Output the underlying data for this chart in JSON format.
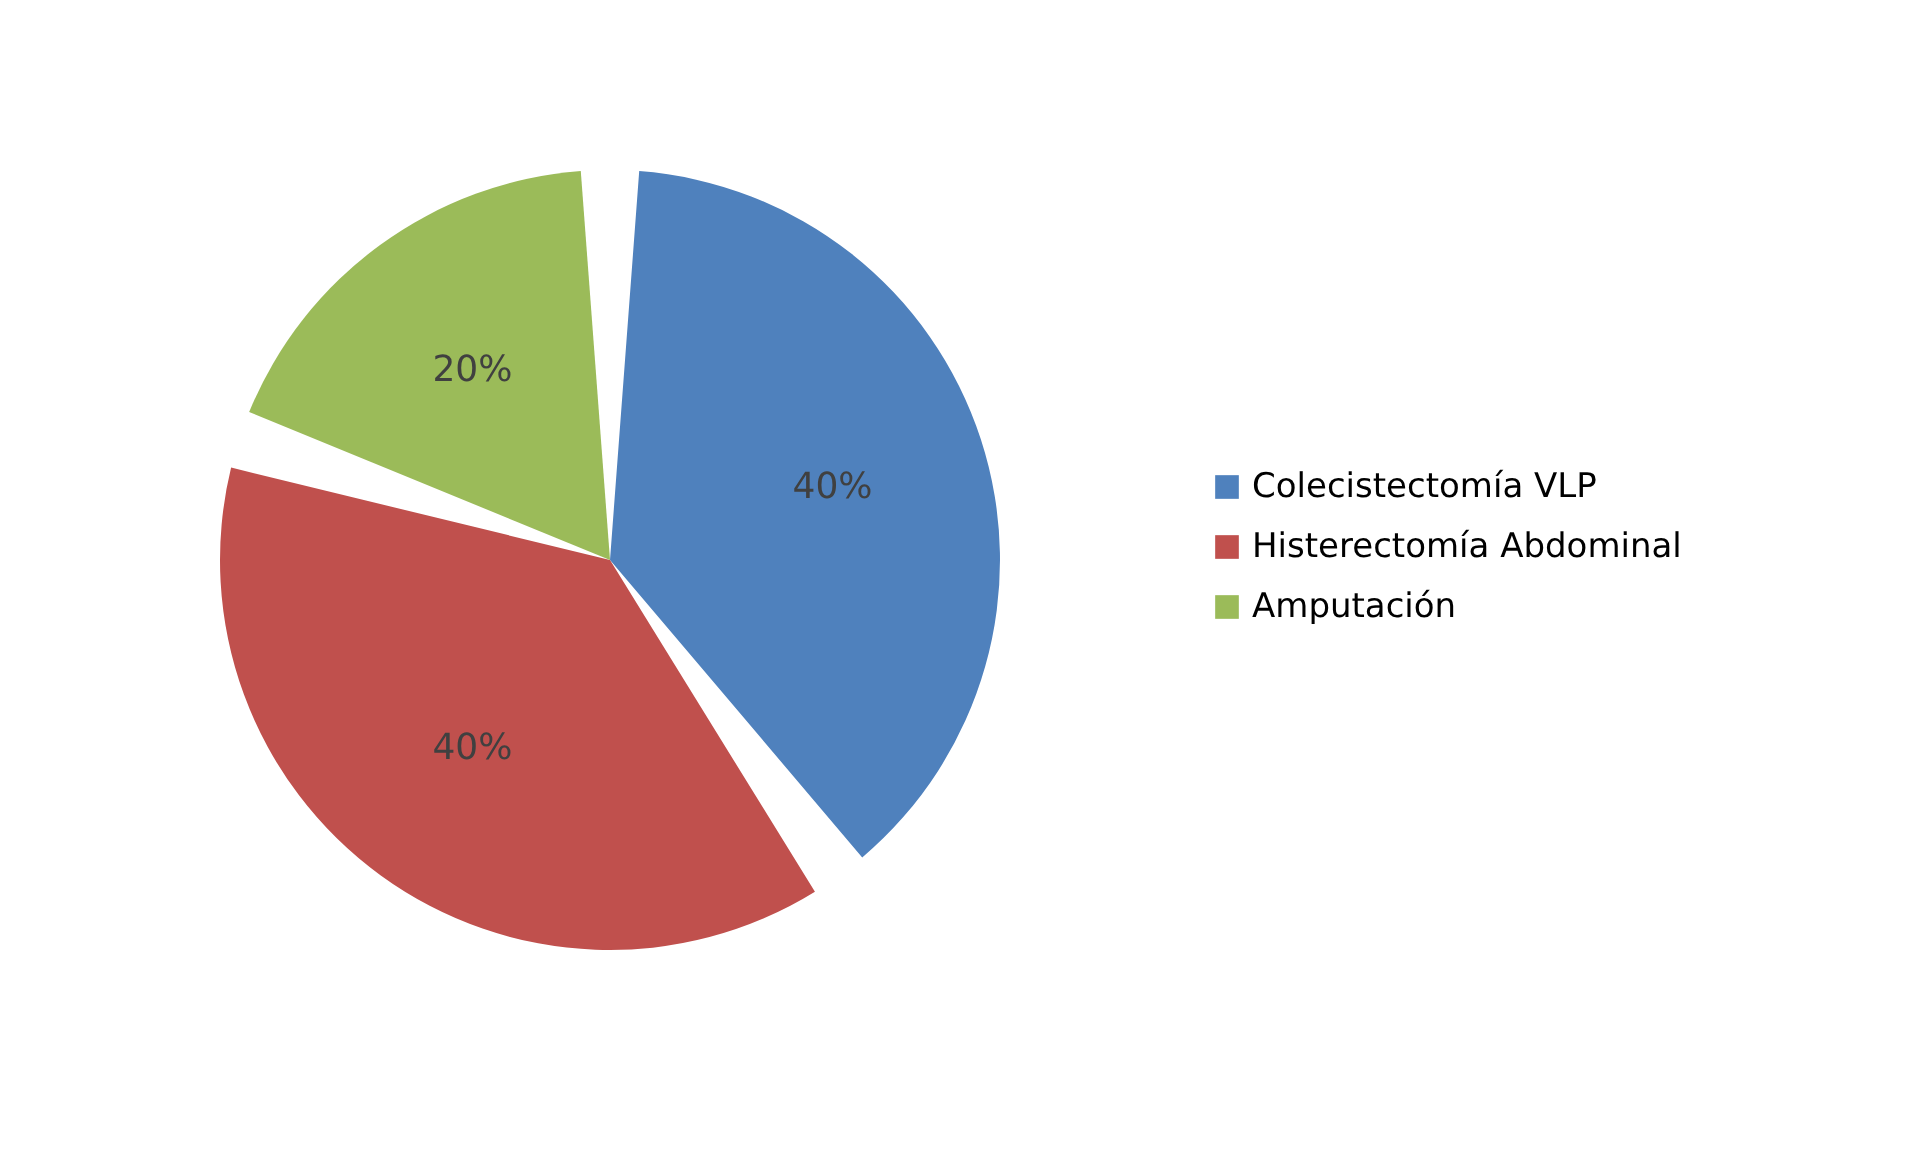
{
  "chart_data": {
    "type": "pie",
    "categories": [
      "Colecistectomía VLP",
      "Histerectomía Abdominal",
      "Amputación"
    ],
    "values": [
      40,
      40,
      20
    ],
    "colors": [
      "#4f81bd",
      "#c0504d",
      "#9bbb59"
    ],
    "value_labels": [
      "40%",
      "40%",
      "20%"
    ],
    "legend": "right"
  }
}
